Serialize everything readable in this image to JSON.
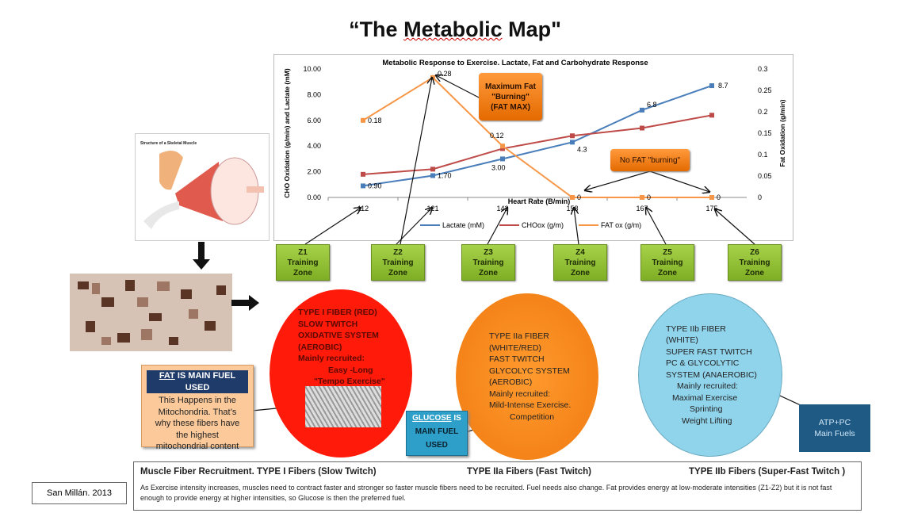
{
  "title_open": "“The ",
  "title_word": "Metabolic",
  "title_close": " Map\"",
  "chart_data": {
    "type": "line",
    "title": "Metabolic Response to Exercise. Lactate, Fat and Carbohydrate Response",
    "xlabel": "Heart Rate (B/min)",
    "ylabel_left": "CHO Oxidation (g/min) and Lactate (mM)",
    "ylabel_right": "Fat Oxidation (g/min)",
    "categories": [
      "112",
      "121",
      "142",
      "158",
      "167",
      "175"
    ],
    "ylim_left": [
      0,
      10
    ],
    "yticks_left": [
      "0.00",
      "2.00",
      "4.00",
      "6.00",
      "8.00",
      "10.00"
    ],
    "ylim_right": [
      0,
      0.3
    ],
    "yticks_right": [
      "0",
      "0.05",
      "0.1",
      "0.15",
      "0.2",
      "0.25",
      "0.3"
    ],
    "legend_position": "bottom",
    "series": [
      {
        "name": "Lactate (mM)",
        "axis": "left",
        "color": "#4a7ebb",
        "values": [
          0.9,
          1.7,
          3.0,
          4.3,
          6.8,
          8.7
        ],
        "labels": [
          "0.90",
          "1.70",
          "3.00",
          "4.3",
          "6.8",
          "8.7"
        ]
      },
      {
        "name": "CHOox (g/m)",
        "axis": "left",
        "color": "#be4b48",
        "values": [
          1.8,
          2.2,
          3.8,
          4.8,
          5.4,
          6.4
        ],
        "labels": []
      },
      {
        "name": "FAT ox (g/m)",
        "axis": "right",
        "color": "#f79646",
        "values": [
          0.18,
          0.28,
          0.12,
          0,
          0,
          0
        ],
        "labels": [
          "0.18",
          "0.28",
          "0.12",
          "0",
          "0",
          "0"
        ]
      }
    ]
  },
  "callouts": {
    "fatmax": [
      "Maximum Fat",
      "\"Burning\"",
      "(FAT MAX)"
    ],
    "nofat": "No FAT \"burning\""
  },
  "zones": [
    {
      "id": "Z1",
      "l1": "Training",
      "l2": "Zone"
    },
    {
      "id": "Z2",
      "l1": "Training",
      "l2": "Zone"
    },
    {
      "id": "Z3",
      "l1": "Training",
      "l2": "Zone"
    },
    {
      "id": "Z4",
      "l1": "Training",
      "l2": "Zone"
    },
    {
      "id": "Z5",
      "l1": "Training",
      "l2": "Zone"
    },
    {
      "id": "Z6",
      "l1": "Training",
      "l2": "Zone"
    }
  ],
  "type1": [
    "TYPE I FIBER (RED)",
    "SLOW TWITCH",
    "OXIDATIVE SYSTEM",
    "(AEROBIC)",
    "Mainly recruited:",
    "Easy -Long",
    "\"Tempo Exercise\""
  ],
  "type2a": [
    "TYPE IIa FIBER",
    "(WHITE/RED)",
    "FAST TWITCH",
    "GLYCOLYC SYSTEM",
    "(AEROBIC)",
    "Mainly recruited:",
    "Mild-Intense Exercise.",
    "Competition"
  ],
  "type2b": [
    "TYPE IIb FIBER",
    "(WHITE)",
    "SUPER FAST TWITCH",
    "PC & GLYCOLYTIC",
    "SYSTEM (ANAEROBIC)",
    "Mainly recruited:",
    "Maximal Exercise",
    "Sprinting",
    "Weight Lifting"
  ],
  "fatbox": {
    "head_u": "FAT",
    "head_rest": " IS MAIN FUEL USED",
    "lines": [
      "This Happens in the",
      "Mitochondria. That’s",
      "why these fibers have",
      "the highest",
      "mitochondrial content"
    ]
  },
  "glubox": {
    "head_u": "GLUCOSE",
    "head_rest": " IS",
    "l2": "MAIN FUEL",
    "l3": "USED"
  },
  "atpbox": [
    "ATP+PC",
    "Main Fuels"
  ],
  "bottom": {
    "h1": "Muscle Fiber Recruitment.  TYPE I Fibers (Slow Twitch)",
    "h2": "TYPE IIa Fibers (Fast Twitch)",
    "h3": "TYPE IIb Fibers (Super-Fast Twitch )",
    "text": "As Exercise intensity increases, muscles need to contract faster and stronger so faster muscle fibers need to be recruited. Fuel needs also change. Fat provides energy at low-moderate intensities (Z1-Z2) but it is not fast enough to provide energy at higher intensities, so Glucose is then the preferred fuel."
  },
  "author": "San Millán. 2013",
  "muscle_image_title": "Structure of a Skeletal Muscle",
  "muscle_labels": [
    "Bone",
    "Perimysium",
    "Blood vessel",
    "Muscle fiber",
    "Tendon",
    "Epimysium",
    "Endomysium",
    "Fascicle"
  ]
}
